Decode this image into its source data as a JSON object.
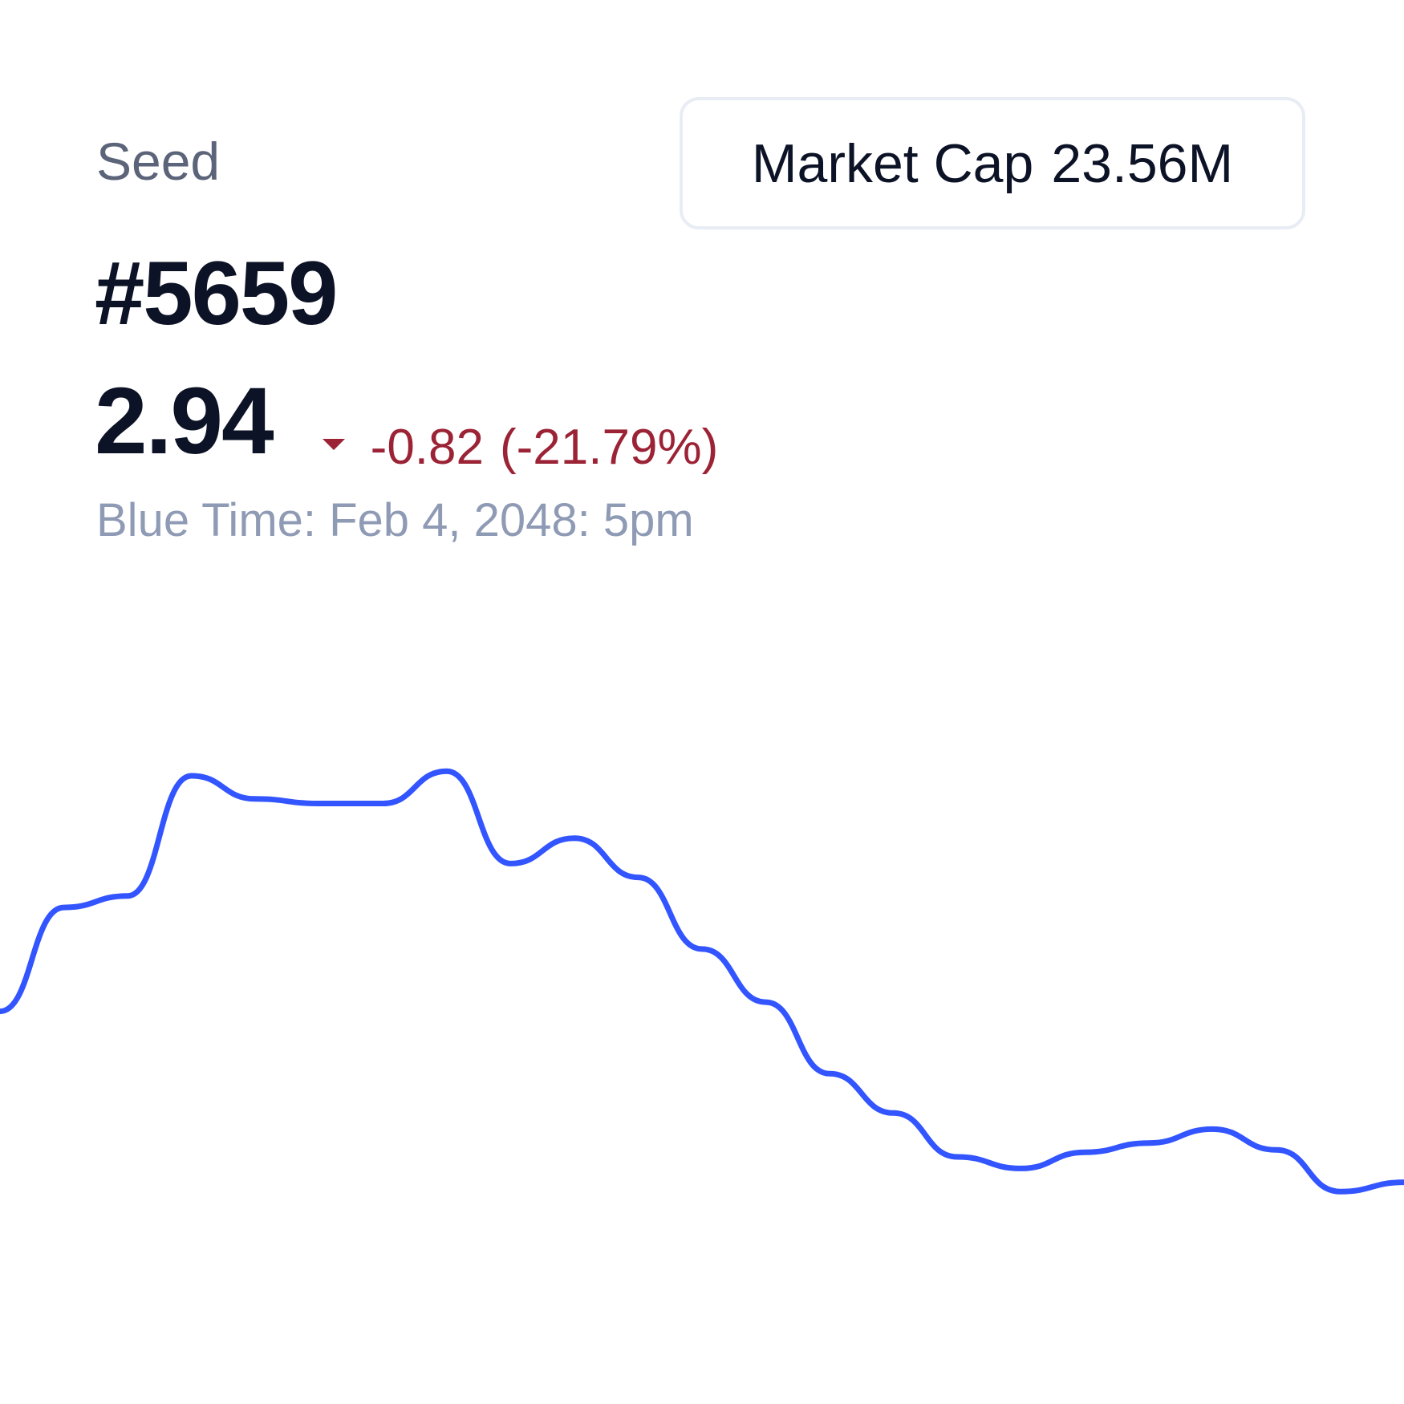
{
  "header": {
    "category": "Seed",
    "token_id": "#5659",
    "market_cap_label": "Market Cap",
    "market_cap_value": "23.56M"
  },
  "price": {
    "value": "2.94",
    "change_abs": "-0.82",
    "change_pct": "(-21.79%)",
    "direction_icon": "caret-down-icon",
    "change_color": "#9b2335"
  },
  "timestamp": "Blue Time: Feb 4, 2048: 5pm",
  "chart_data": {
    "type": "line",
    "title": "",
    "xlabel": "",
    "ylabel": "",
    "grid": false,
    "legend": "none",
    "line_color": "#3355ff",
    "x": [
      0,
      1,
      2,
      3,
      4,
      5,
      6,
      7,
      8,
      9,
      10,
      11,
      12,
      13,
      14,
      15,
      16,
      17,
      18,
      19,
      20,
      21,
      22
    ],
    "series": [
      {
        "values": [
          3.7,
          4.15,
          4.2,
          4.72,
          4.62,
          4.6,
          4.6,
          4.74,
          4.34,
          4.45,
          4.28,
          3.97,
          3.74,
          3.43,
          3.26,
          3.07,
          3.02,
          3.09,
          3.13,
          3.19,
          3.1,
          2.92,
          2.96
        ]
      }
    ],
    "ylim": [
      2.0,
      5.3
    ]
  }
}
